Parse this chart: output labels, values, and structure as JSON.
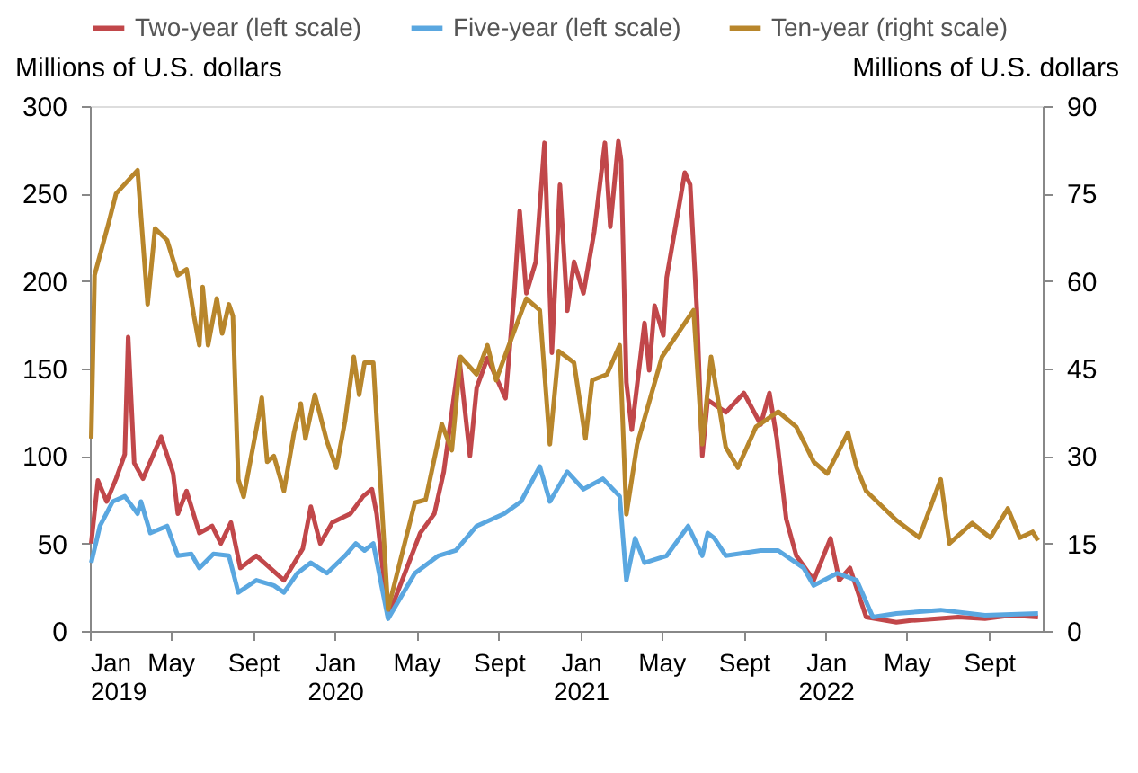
{
  "chart_data": {
    "type": "line",
    "ylabel": "Millions of U.S. dollars",
    "y2label": "Millions of U.S. dollars",
    "legend": "top",
    "xlim": [
      "2019-01-01",
      "2022-11-20"
    ],
    "xticks": [
      {
        "value": "2019-01-01",
        "label": "Jan\n2019"
      },
      {
        "value": "2019-05-01",
        "label": "May"
      },
      {
        "value": "2019-09-01",
        "label": "Sept"
      },
      {
        "value": "2020-01-01",
        "label": "Jan\n2020"
      },
      {
        "value": "2020-05-01",
        "label": "May"
      },
      {
        "value": "2020-09-01",
        "label": "Sept"
      },
      {
        "value": "2021-01-01",
        "label": "Jan\n2021"
      },
      {
        "value": "2021-05-01",
        "label": "May"
      },
      {
        "value": "2021-09-01",
        "label": "Sept"
      },
      {
        "value": "2022-01-01",
        "label": "Jan\n2022"
      },
      {
        "value": "2022-05-01",
        "label": "May"
      },
      {
        "value": "2022-09-01",
        "label": "Sept"
      }
    ],
    "ylim": [
      0,
      300
    ],
    "yticks": [
      0,
      50,
      100,
      150,
      200,
      250,
      300
    ],
    "y2lim": [
      0,
      90
    ],
    "y2ticks": [
      0,
      15,
      30,
      45,
      60,
      75,
      90
    ],
    "series": [
      {
        "name": "Two-year (left scale)",
        "color": "#c1474a",
        "x": [
          "2019-01-03",
          "2019-01-13",
          "2019-01-26",
          "2019-02-09",
          "2019-02-22",
          "2019-02-27",
          "2019-03-08",
          "2019-03-21",
          "2019-04-17",
          "2019-05-05",
          "2019-05-12",
          "2019-05-25",
          "2019-06-13",
          "2019-07-02",
          "2019-07-15",
          "2019-07-30",
          "2019-08-13",
          "2019-09-06",
          "2019-10-17",
          "2019-11-14",
          "2019-11-26",
          "2019-12-10",
          "2019-12-28",
          "2020-01-24",
          "2020-02-12",
          "2020-02-25",
          "2020-03-03",
          "2020-03-20",
          "2020-05-07",
          "2020-05-28",
          "2020-06-11",
          "2020-07-04",
          "2020-07-20",
          "2020-07-30",
          "2020-08-15",
          "2020-09-11",
          "2020-09-24",
          "2020-10-02",
          "2020-10-12",
          "2020-10-26",
          "2020-11-08",
          "2020-11-19",
          "2020-12-01",
          "2020-12-12",
          "2020-12-22",
          "2021-01-05",
          "2021-01-21",
          "2021-02-06",
          "2021-02-14",
          "2021-02-26",
          "2021-03-02",
          "2021-03-10",
          "2021-03-18",
          "2021-04-06",
          "2021-04-13",
          "2021-04-21",
          "2021-05-04",
          "2021-05-09",
          "2021-06-05",
          "2021-06-13",
          "2021-06-23",
          "2021-07-01",
          "2021-07-09",
          "2021-08-05",
          "2021-09-01",
          "2021-09-26",
          "2021-10-09",
          "2021-10-20",
          "2021-11-03",
          "2021-11-18",
          "2021-12-14",
          "2022-01-08",
          "2022-01-21",
          "2022-02-06",
          "2022-03-02",
          "2022-04-16",
          "2022-05-08",
          "2022-07-17",
          "2022-08-26",
          "2022-10-04",
          "2022-11-13"
        ],
        "values": [
          50,
          86,
          74,
          87,
          101,
          168,
          96,
          87,
          111,
          90,
          67,
          80,
          56,
          60,
          50,
          62,
          36,
          43,
          29,
          47,
          71,
          50,
          62,
          67,
          77,
          81,
          67,
          8,
          56,
          67,
          91,
          156,
          100,
          139,
          156,
          133,
          193,
          240,
          193,
          211,
          279,
          159,
          255,
          183,
          211,
          193,
          228,
          279,
          231,
          280,
          269,
          142,
          115,
          176,
          149,
          186,
          169,
          202,
          262,
          255,
          183,
          100,
          132,
          125,
          136,
          118,
          136,
          110,
          64,
          43,
          29,
          53,
          29,
          36,
          8,
          5,
          6,
          8,
          7,
          9,
          8
        ]
      },
      {
        "name": "Five-year (left scale)",
        "color": "#5aa7e0",
        "x": [
          "2019-01-03",
          "2019-01-16",
          "2019-02-04",
          "2019-02-22",
          "2019-03-13",
          "2019-03-18",
          "2019-04-01",
          "2019-04-26",
          "2019-05-12",
          "2019-06-01",
          "2019-06-13",
          "2019-07-04",
          "2019-07-27",
          "2019-08-10",
          "2019-09-06",
          "2019-10-02",
          "2019-10-17",
          "2019-11-06",
          "2019-11-26",
          "2019-12-20",
          "2020-01-16",
          "2020-02-01",
          "2020-02-14",
          "2020-02-27",
          "2020-03-20",
          "2020-04-29",
          "2020-06-03",
          "2020-06-29",
          "2020-07-30",
          "2020-09-09",
          "2020-10-04",
          "2020-11-01",
          "2020-11-16",
          "2020-12-12",
          "2021-01-05",
          "2021-02-03",
          "2021-02-28",
          "2021-03-10",
          "2021-03-23",
          "2021-04-06",
          "2021-05-09",
          "2021-06-10",
          "2021-07-01",
          "2021-07-09",
          "2021-07-19",
          "2021-08-05",
          "2021-09-26",
          "2021-10-22",
          "2021-11-29",
          "2021-12-14",
          "2022-01-18",
          "2022-02-16",
          "2022-03-12",
          "2022-04-16",
          "2022-06-21",
          "2022-08-26",
          "2022-11-13"
        ],
        "values": [
          39,
          60,
          74,
          77,
          67,
          74,
          56,
          60,
          43,
          44,
          36,
          44,
          43,
          22,
          29,
          26,
          22,
          33,
          39,
          33,
          43,
          50,
          46,
          50,
          7,
          33,
          43,
          46,
          60,
          67,
          74,
          94,
          74,
          91,
          81,
          87,
          77,
          29,
          53,
          39,
          43,
          60,
          43,
          56,
          53,
          43,
          46,
          46,
          36,
          26,
          33,
          29,
          8,
          10,
          12,
          9,
          10
        ]
      },
      {
        "name": "Ten-year (right scale)",
        "color": "#b8862b",
        "axis": "y2",
        "x": [
          "2019-01-03",
          "2019-01-08",
          "2019-01-29",
          "2019-02-09",
          "2019-03-13",
          "2019-03-28",
          "2019-04-08",
          "2019-04-26",
          "2019-05-12",
          "2019-05-25",
          "2019-06-05",
          "2019-06-13",
          "2019-06-18",
          "2019-06-26",
          "2019-07-09",
          "2019-07-17",
          "2019-07-27",
          "2019-08-02",
          "2019-08-10",
          "2019-08-18",
          "2019-09-09",
          "2019-09-14",
          "2019-09-22",
          "2019-10-02",
          "2019-10-17",
          "2019-11-01",
          "2019-11-11",
          "2019-11-18",
          "2019-12-02",
          "2019-12-20",
          "2020-01-03",
          "2020-01-16",
          "2020-01-29",
          "2020-02-06",
          "2020-02-14",
          "2020-02-27",
          "2020-03-20",
          "2020-04-29",
          "2020-05-15",
          "2020-06-08",
          "2020-06-23",
          "2020-07-06",
          "2020-07-30",
          "2020-08-15",
          "2020-08-28",
          "2020-09-16",
          "2020-10-12",
          "2020-11-01",
          "2020-11-16",
          "2020-11-29",
          "2020-12-22",
          "2021-01-08",
          "2021-01-18",
          "2021-02-09",
          "2021-02-28",
          "2021-03-10",
          "2021-03-26",
          "2021-05-02",
          "2021-06-18",
          "2021-07-01",
          "2021-07-14",
          "2021-08-05",
          "2021-08-23",
          "2021-09-19",
          "2021-10-22",
          "2021-11-18",
          "2021-12-14",
          "2022-01-03",
          "2022-02-03",
          "2022-02-16",
          "2022-03-02",
          "2022-03-20",
          "2022-04-16",
          "2022-05-20",
          "2022-06-21",
          "2022-07-04",
          "2022-08-07",
          "2022-09-03",
          "2022-09-29",
          "2022-10-17",
          "2022-11-05",
          "2022-11-13"
        ],
        "values": [
          33,
          61,
          70,
          75,
          79,
          56,
          69,
          67,
          61,
          62,
          54,
          49,
          59,
          49,
          57,
          51,
          56,
          54,
          26,
          23,
          36.5,
          40,
          29,
          30,
          24,
          34,
          39,
          33,
          40.5,
          32.5,
          28,
          36,
          47,
          40.5,
          46,
          46,
          3.7,
          22,
          22.5,
          35.5,
          31,
          47,
          44,
          49,
          43,
          49,
          57,
          55,
          32,
          48,
          46,
          33,
          43,
          44,
          49,
          20,
          32,
          47,
          55,
          32,
          47,
          31.5,
          28,
          35,
          37.6,
          35,
          29,
          27,
          34,
          28,
          24,
          22,
          19,
          16,
          26,
          15,
          18.5,
          16,
          21,
          16,
          17,
          15.5
        ]
      }
    ]
  }
}
